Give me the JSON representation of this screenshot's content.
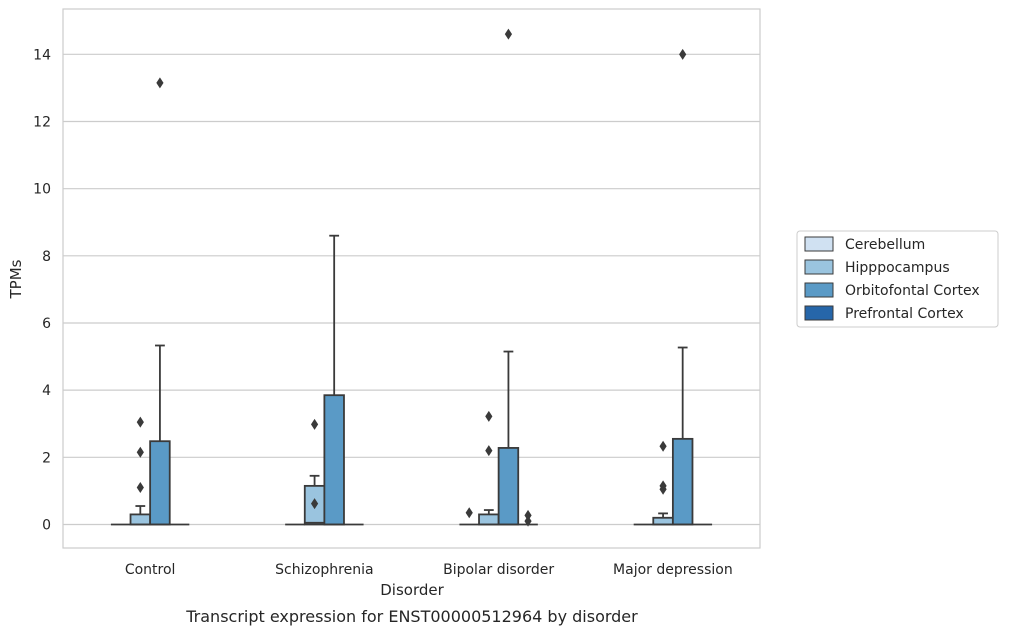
{
  "chart_data": {
    "type": "box",
    "title": "Transcript expression for ENST00000512964 by disorder",
    "xlabel": "Disorder",
    "ylabel": "TPMs",
    "ylim": [
      -0.7,
      15.35
    ],
    "yticks": [
      0,
      2,
      4,
      6,
      8,
      10,
      12,
      14
    ],
    "grid": "horizontal",
    "legend_position": "right",
    "categories": [
      "Control",
      "Schizophrenia",
      "Bipolar disorder",
      "Major depression"
    ],
    "series": [
      {
        "name": "Cerebellum",
        "color": "#d0e1f2",
        "boxes": [
          {
            "q1": 0,
            "median": 0,
            "q3": 0,
            "whisker_low": 0,
            "whisker_high": 0,
            "outliers": []
          },
          {
            "q1": 0,
            "median": 0,
            "q3": 0,
            "whisker_low": 0,
            "whisker_high": 0,
            "outliers": []
          },
          {
            "q1": 0,
            "median": 0,
            "q3": 0,
            "whisker_low": 0,
            "whisker_high": 0,
            "outliers": [
              0.35
            ]
          },
          {
            "q1": 0,
            "median": 0,
            "q3": 0,
            "whisker_low": 0,
            "whisker_high": 0,
            "outliers": []
          }
        ]
      },
      {
        "name": "Hipppocampus",
        "color": "#9ac4df",
        "boxes": [
          {
            "q1": 0,
            "median": 0,
            "q3": 0.3,
            "whisker_low": 0,
            "whisker_high": 0.55,
            "outliers": [
              1.1,
              2.15,
              3.05
            ]
          },
          {
            "q1": 0,
            "median": 0.05,
            "q3": 1.15,
            "whisker_low": 0,
            "whisker_high": 1.45,
            "outliers": [
              0.62,
              2.98
            ]
          },
          {
            "q1": 0,
            "median": 0,
            "q3": 0.3,
            "whisker_low": 0,
            "whisker_high": 0.43,
            "outliers": [
              2.2,
              3.22
            ]
          },
          {
            "q1": 0,
            "median": 0,
            "q3": 0.2,
            "whisker_low": 0,
            "whisker_high": 0.33,
            "outliers": [
              1.05,
              1.15,
              2.33
            ]
          }
        ]
      },
      {
        "name": "Orbitofontal Cortex",
        "color": "#5a9ac6",
        "boxes": [
          {
            "q1": 0,
            "median": 0,
            "q3": 2.48,
            "whisker_low": 0,
            "whisker_high": 5.33,
            "outliers": [
              13.15
            ]
          },
          {
            "q1": 0,
            "median": 0,
            "q3": 3.85,
            "whisker_low": 0,
            "whisker_high": 8.6,
            "outliers": []
          },
          {
            "q1": 0,
            "median": 0,
            "q3": 2.28,
            "whisker_low": 0,
            "whisker_high": 5.15,
            "outliers": [
              14.6
            ]
          },
          {
            "q1": 0,
            "median": 0,
            "q3": 2.55,
            "whisker_low": 0,
            "whisker_high": 5.27,
            "outliers": [
              14.0
            ]
          }
        ]
      },
      {
        "name": "Prefrontal Cortex",
        "color": "#2666a9",
        "boxes": [
          {
            "q1": 0,
            "median": 0,
            "q3": 0,
            "whisker_low": 0,
            "whisker_high": 0,
            "outliers": []
          },
          {
            "q1": 0,
            "median": 0,
            "q3": 0,
            "whisker_low": 0,
            "whisker_high": 0,
            "outliers": []
          },
          {
            "q1": 0,
            "median": 0,
            "q3": 0,
            "whisker_low": 0,
            "whisker_high": 0,
            "outliers": [
              0.1,
              0.27
            ]
          },
          {
            "q1": 0,
            "median": 0,
            "q3": 0,
            "whisker_low": 0,
            "whisker_high": 0,
            "outliers": []
          }
        ]
      }
    ]
  }
}
